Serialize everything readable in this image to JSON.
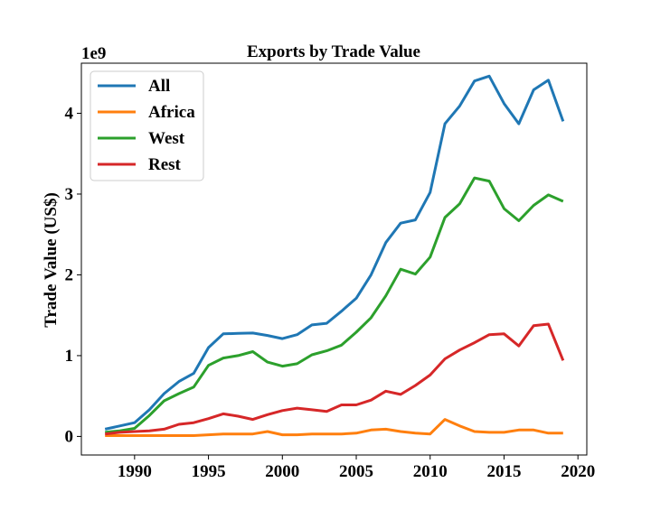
{
  "chart_data": {
    "type": "line",
    "title": "Exports by Trade Value",
    "xlabel": "",
    "ylabel": "Trade Value (US$)",
    "y_multiplier": "1e9",
    "xlim": [
      1986.4,
      2020.6
    ],
    "ylim": [
      -0.23,
      4.62
    ],
    "xticks": [
      1990,
      1995,
      2000,
      2005,
      2010,
      2015,
      2020
    ],
    "yticks": [
      0,
      1,
      2,
      3,
      4
    ],
    "grid": false,
    "legend_position": "top-left",
    "x": [
      1988,
      1989,
      1990,
      1991,
      1992,
      1993,
      1994,
      1995,
      1996,
      1997,
      1998,
      1999,
      2000,
      2001,
      2002,
      2003,
      2004,
      2005,
      2006,
      2007,
      2008,
      2009,
      2010,
      2011,
      2012,
      2013,
      2014,
      2015,
      2016,
      2017,
      2018,
      2019
    ],
    "series": [
      {
        "name": "All",
        "color": "#1f77b4",
        "values": [
          0.09,
          0.13,
          0.17,
          0.33,
          0.53,
          0.68,
          0.78,
          1.1,
          1.27,
          1.275,
          1.28,
          1.25,
          1.21,
          1.26,
          1.38,
          1.4,
          1.55,
          1.71,
          2.0,
          2.4,
          2.64,
          2.68,
          3.02,
          3.87,
          4.09,
          4.4,
          4.46,
          4.12,
          3.87,
          4.29,
          4.41,
          3.9
        ]
      },
      {
        "name": "Africa",
        "color": "#ff7f0e",
        "values": [
          0.01,
          0.01,
          0.01,
          0.01,
          0.01,
          0.01,
          0.01,
          0.02,
          0.03,
          0.03,
          0.03,
          0.06,
          0.02,
          0.02,
          0.03,
          0.03,
          0.03,
          0.04,
          0.08,
          0.09,
          0.06,
          0.04,
          0.03,
          0.21,
          0.13,
          0.06,
          0.05,
          0.05,
          0.08,
          0.08,
          0.04,
          0.04
        ]
      },
      {
        "name": "West",
        "color": "#2ca02c",
        "values": [
          0.05,
          0.07,
          0.1,
          0.26,
          0.44,
          0.53,
          0.61,
          0.88,
          0.97,
          1.0,
          1.05,
          0.92,
          0.87,
          0.9,
          1.01,
          1.06,
          1.13,
          1.29,
          1.47,
          1.74,
          2.07,
          2.01,
          2.22,
          2.71,
          2.88,
          3.2,
          3.16,
          2.82,
          2.67,
          2.86,
          2.99,
          2.91
        ]
      },
      {
        "name": "Rest",
        "color": "#d62728",
        "values": [
          0.03,
          0.05,
          0.06,
          0.07,
          0.09,
          0.15,
          0.17,
          0.22,
          0.28,
          0.25,
          0.21,
          0.27,
          0.32,
          0.35,
          0.33,
          0.31,
          0.39,
          0.39,
          0.45,
          0.56,
          0.52,
          0.63,
          0.76,
          0.96,
          1.07,
          1.16,
          1.26,
          1.27,
          1.12,
          1.37,
          1.39,
          0.94
        ]
      }
    ]
  }
}
